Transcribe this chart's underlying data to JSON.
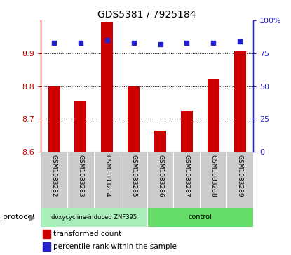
{
  "title": "GDS5381 / 7925184",
  "samples": [
    "GSM1083282",
    "GSM1083283",
    "GSM1083284",
    "GSM1083285",
    "GSM1083286",
    "GSM1083287",
    "GSM1083288",
    "GSM1083289"
  ],
  "bar_values": [
    8.8,
    8.755,
    8.993,
    8.8,
    8.665,
    8.723,
    8.823,
    8.905
  ],
  "percentile_values": [
    83,
    83,
    85,
    83,
    82,
    83,
    83,
    84
  ],
  "ylim_left": [
    8.6,
    9.0
  ],
  "ylim_right": [
    0,
    100
  ],
  "yticks_left": [
    8.6,
    8.7,
    8.8,
    8.9
  ],
  "ytick_labels_left": [
    "8.6",
    "8.7",
    "8.8",
    "8.9"
  ],
  "yticks_right": [
    0,
    25,
    50,
    75,
    100
  ],
  "ytick_labels_right": [
    "0",
    "25",
    "50",
    "75",
    "100%"
  ],
  "bar_color": "#cc0000",
  "dot_color": "#2222cc",
  "bar_bottom": 8.6,
  "group1_label": "doxycycline-induced ZNF395",
  "group2_label": "control",
  "group1_color": "#aaeebb",
  "group2_color": "#66dd66",
  "group1_count": 4,
  "group2_count": 4,
  "protocol_label": "protocol",
  "legend_bar_label": "transformed count",
  "legend_dot_label": "percentile rank within the sample",
  "left_tick_color": "#cc0000",
  "right_tick_color": "#2222cc",
  "sample_bg_color": "#cccccc",
  "bar_width": 0.45
}
